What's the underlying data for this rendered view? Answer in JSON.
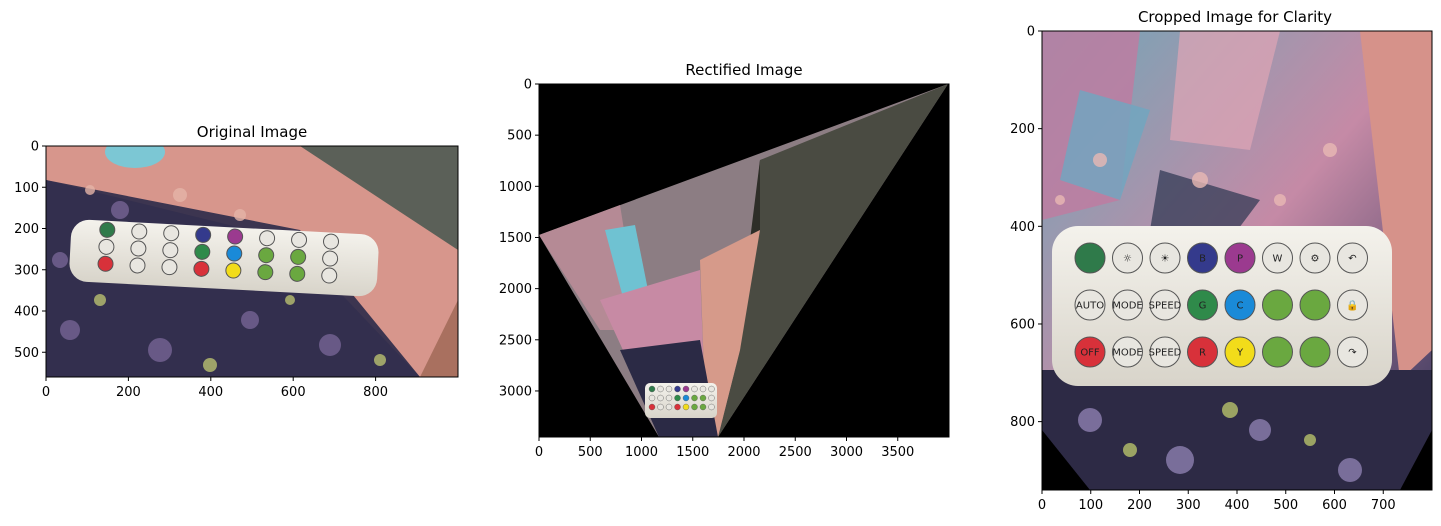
{
  "chart_data": [
    {
      "type": "image",
      "title": "Original Image",
      "xlim": [
        0,
        1000
      ],
      "ylim": [
        560,
        0
      ],
      "xticks": [
        0,
        200,
        400,
        600,
        800
      ],
      "yticks": [
        0,
        100,
        200,
        300,
        400,
        500
      ],
      "content": "photo of a white IR remote with colored buttons on a patterned mat"
    },
    {
      "type": "image",
      "title": "Rectified Image",
      "xlim": [
        0,
        4000
      ],
      "ylim": [
        3450,
        0
      ],
      "xticks": [
        0,
        500,
        1000,
        1500,
        2000,
        2500,
        3000,
        3500
      ],
      "yticks": [
        0,
        500,
        1000,
        1500,
        2000,
        2500,
        3000
      ],
      "content": "perspective-warped photo on black background, remote near bottom"
    },
    {
      "type": "image",
      "title": "Cropped Image for Clarity",
      "xlim": [
        0,
        800
      ],
      "ylim": [
        940,
        0
      ],
      "xticks": [
        0,
        100,
        200,
        300,
        400,
        500,
        600,
        700
      ],
      "yticks": [
        0,
        200,
        400,
        600,
        800
      ],
      "content": "close-up of remote buttons, blurred background"
    }
  ],
  "remote_buttons": {
    "row1": [
      {
        "label": "",
        "color": "#2f7a4a"
      },
      {
        "label": "☼",
        "color": "#e8e6e0"
      },
      {
        "label": "☀",
        "color": "#e8e6e0"
      },
      {
        "label": "B",
        "color": "#343a8c"
      },
      {
        "label": "P",
        "color": "#9b3a8f"
      },
      {
        "label": "W",
        "color": "#e8e6e0"
      },
      {
        "label": "⚙",
        "color": "#e8e6e0"
      },
      {
        "label": "↶",
        "color": "#e8e6e0"
      }
    ],
    "row2": [
      {
        "label": "AUTO",
        "color": "#e8e6e0"
      },
      {
        "label": "MODE",
        "color": "#e8e6e0"
      },
      {
        "label": "SPEED",
        "color": "#e8e6e0"
      },
      {
        "label": "G",
        "color": "#2f8a4a"
      },
      {
        "label": "C",
        "color": "#1a8ad8"
      },
      {
        "label": "",
        "color": "#6aa840"
      },
      {
        "label": "",
        "color": "#6aa840"
      },
      {
        "label": "🔒",
        "color": "#e8e6e0"
      }
    ],
    "row3": [
      {
        "label": "OFF",
        "color": "#d8313a"
      },
      {
        "label": "MODE",
        "color": "#e8e6e0"
      },
      {
        "label": "SPEED",
        "color": "#e8e6e0"
      },
      {
        "label": "R",
        "color": "#d8313a"
      },
      {
        "label": "Y",
        "color": "#f2dc1a"
      },
      {
        "label": "",
        "color": "#6aa840"
      },
      {
        "label": "",
        "color": "#6aa840"
      },
      {
        "label": "↷",
        "color": "#e8e6e0"
      }
    ]
  }
}
